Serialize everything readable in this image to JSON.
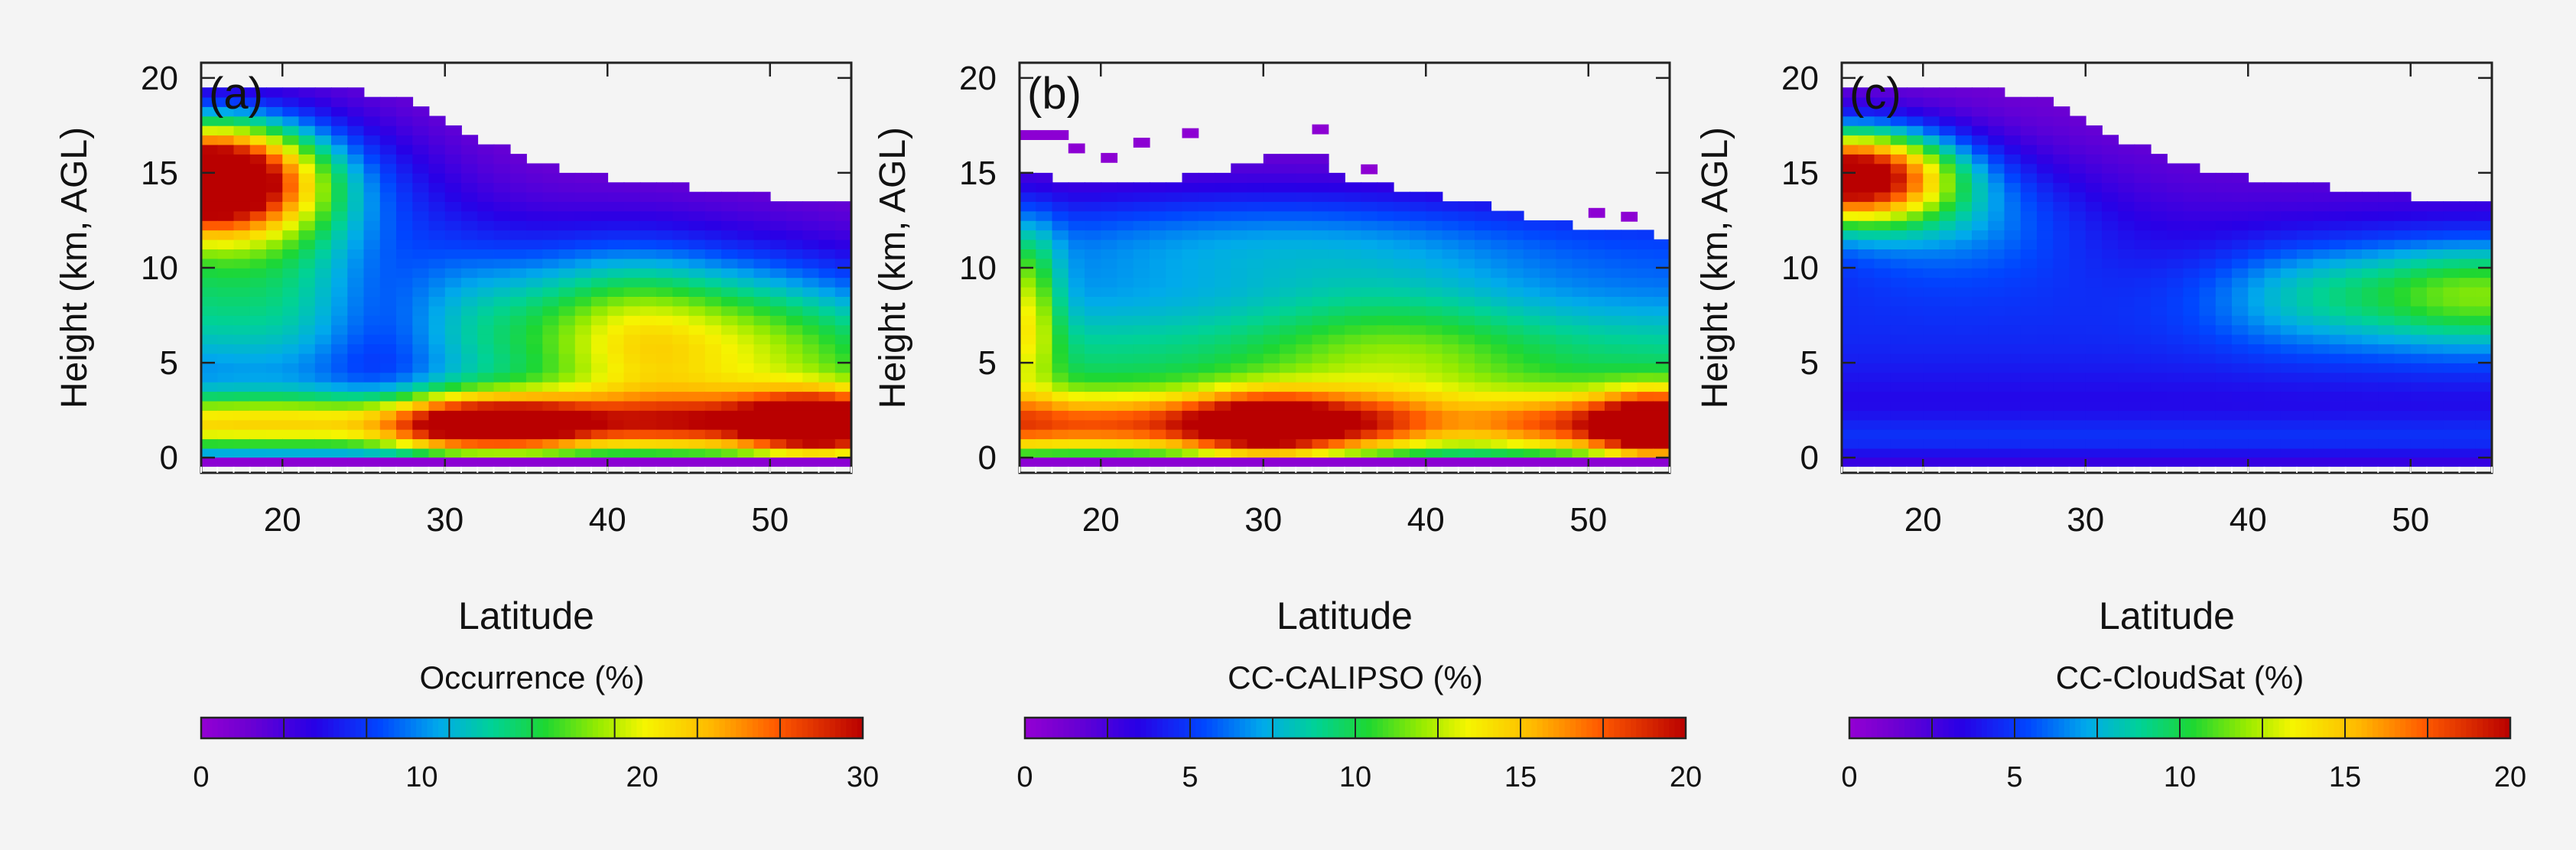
{
  "chart_data": [
    {
      "type": "heatmap",
      "panel_label": "(a)",
      "xlabel": "Latitude",
      "ylabel": "Height (km, AGL)",
      "xlim": [
        15,
        55
      ],
      "ylim": [
        -0.8,
        20.8
      ],
      "x_ticks": [
        "20",
        "30",
        "40",
        "50"
      ],
      "y_ticks": [
        "0",
        "5",
        "10",
        "15",
        "20"
      ],
      "colorbar": {
        "label": "Occurrence (%)",
        "min": 0,
        "max": 30,
        "ticks": [
          "0",
          "10",
          "20",
          "30"
        ]
      },
      "field": "occurrence",
      "surface_band_value": 0.5,
      "top_km": [
        [
          15,
          19.2
        ],
        [
          20,
          19.1
        ],
        [
          25,
          19.0
        ],
        [
          28,
          18.5
        ],
        [
          31,
          17.0
        ],
        [
          35,
          15.5
        ],
        [
          40,
          14.5
        ],
        [
          45,
          14.0
        ],
        [
          50,
          13.5
        ],
        [
          55,
          13.3
        ]
      ]
    },
    {
      "type": "heatmap",
      "panel_label": "(b)",
      "xlabel": "Latitude",
      "ylabel": "Height (km, AGL)",
      "xlim": [
        15,
        55
      ],
      "ylim": [
        -0.8,
        20.8
      ],
      "x_ticks": [
        "20",
        "30",
        "40",
        "50"
      ],
      "y_ticks": [
        "0",
        "5",
        "10",
        "15",
        "20"
      ],
      "colorbar": {
        "label": "CC-CALIPSO (%)",
        "min": 0,
        "max": 20,
        "ticks": [
          "0",
          "5",
          "10",
          "15",
          "20"
        ]
      },
      "field": "calipso",
      "surface_band_value": 0.3,
      "top_km": [
        [
          15,
          14.8
        ],
        [
          18,
          14.3
        ],
        [
          22,
          14.2
        ],
        [
          26,
          14.6
        ],
        [
          30,
          15.6
        ],
        [
          33,
          16.0
        ],
        [
          35,
          14.3
        ],
        [
          40,
          13.8
        ],
        [
          45,
          12.8
        ],
        [
          50,
          11.8
        ],
        [
          55,
          11.4
        ]
      ]
    },
    {
      "type": "heatmap",
      "panel_label": "(c)",
      "xlabel": "Latitude",
      "ylabel": "Height (km, AGL)",
      "xlim": [
        15,
        55
      ],
      "ylim": [
        -0.8,
        20.8
      ],
      "x_ticks": [
        "20",
        "30",
        "40",
        "50"
      ],
      "y_ticks": [
        "0",
        "5",
        "10",
        "15",
        "20"
      ],
      "colorbar": {
        "label": "CC-CloudSat (%)",
        "min": 0,
        "max": 20,
        "ticks": [
          "0",
          "5",
          "10",
          "15",
          "20"
        ]
      },
      "field": "cloudsat",
      "surface_band_value": 3.0,
      "top_km": [
        [
          15,
          19.2
        ],
        [
          20,
          19.1
        ],
        [
          25,
          19.0
        ],
        [
          28,
          18.6
        ],
        [
          31,
          17.0
        ],
        [
          35,
          15.5
        ],
        [
          40,
          14.5
        ],
        [
          45,
          14.0
        ],
        [
          50,
          13.5
        ],
        [
          55,
          13.3
        ]
      ]
    }
  ]
}
